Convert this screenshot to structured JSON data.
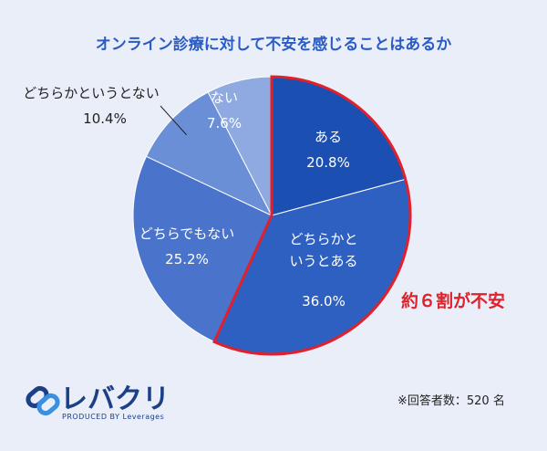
{
  "chart_data": {
    "type": "pie",
    "title": "オンライン診療に対して不安を感じることはあるか",
    "categories": [
      "ある",
      "どちらかというとある",
      "どちらでもない",
      "どちらかというとない",
      "ない"
    ],
    "values": [
      20.8,
      36.0,
      25.2,
      10.4,
      7.6
    ],
    "value_labels": [
      "20.8%",
      "36.0%",
      "25.2%",
      "10.4%",
      "7.6%"
    ],
    "colors": [
      "#1c4fb2",
      "#2e60c2",
      "#4a74cc",
      "#6a8fd6",
      "#8eaae1"
    ],
    "annotation": "約６割が不安",
    "note": "※回答者数：520 名"
  },
  "logo": {
    "name": "レバクリ",
    "tagline": "PRODUCED BY Leverages"
  }
}
